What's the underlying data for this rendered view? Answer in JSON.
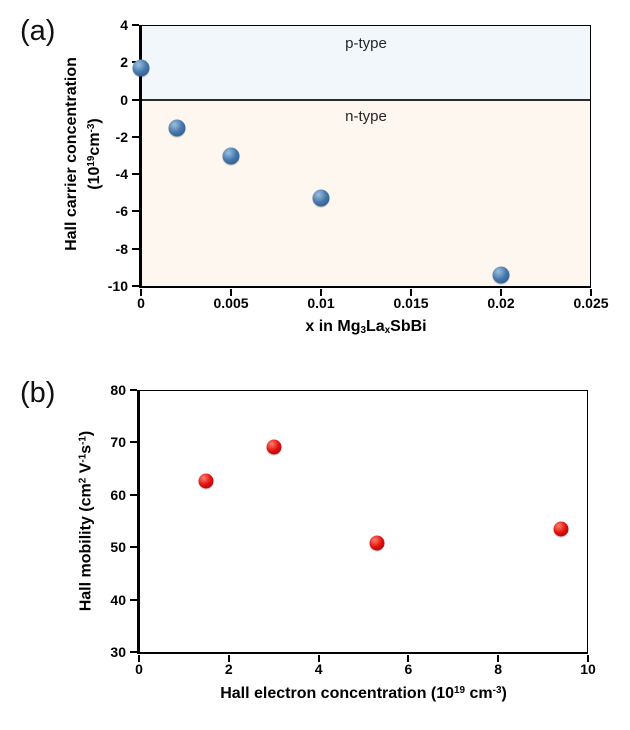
{
  "figure": {
    "panels": [
      {
        "tag": "(a)",
        "y_label_line1": "Hall carrier concentration",
        "y_label_line2": [
          {
            "t": "(10"
          },
          {
            "t": "19",
            "s": "sup"
          },
          {
            "t": "cm"
          },
          {
            "t": "-3",
            "s": "sup"
          },
          {
            "t": ")"
          }
        ],
        "x_label": [
          {
            "t": "x in Mg"
          },
          {
            "t": "3",
            "s": "sub"
          },
          {
            "t": "La"
          },
          {
            "t": "x",
            "s": "sub"
          },
          {
            "t": "SbBi"
          }
        ]
      },
      {
        "tag": "(b)",
        "y_label": [
          {
            "t": "Hall mobility (cm"
          },
          {
            "t": "2",
            "s": "sup"
          },
          {
            "t": " V"
          },
          {
            "t": "-1",
            "s": "sup"
          },
          {
            "t": "s"
          },
          {
            "t": "-1",
            "s": "sup"
          },
          {
            "t": ")"
          }
        ],
        "x_label": [
          {
            "t": "Hall electron concentration (10"
          },
          {
            "t": "19",
            "s": "sup"
          },
          {
            "t": " cm"
          },
          {
            "t": "-3",
            "s": "sup"
          },
          {
            "t": ")"
          }
        ]
      }
    ]
  },
  "chart_data": [
    {
      "type": "scatter",
      "title": "",
      "xlabel": "x in Mg3LaxSbBi",
      "ylabel": "Hall carrier concentration (10^19 cm^-3)",
      "xlim": [
        0,
        0.025
      ],
      "ylim": [
        -10,
        4
      ],
      "x_ticks": [
        0,
        0.005,
        0.01,
        0.015,
        0.02,
        0.025
      ],
      "x_tick_labels": [
        "0",
        "0.005",
        "0.01",
        "0.015",
        "0.02",
        "0.025"
      ],
      "y_ticks": [
        4,
        2,
        0,
        -2,
        -4,
        -6,
        -8,
        -10
      ],
      "grid": false,
      "legend": false,
      "points": [
        {
          "x": 0,
          "y": 1.7
        },
        {
          "x": 0.002,
          "y": -1.5
        },
        {
          "x": 0.005,
          "y": -3.0
        },
        {
          "x": 0.01,
          "y": -5.3
        },
        {
          "x": 0.02,
          "y": -9.4
        }
      ],
      "marker": {
        "shape": "sphere",
        "size": 17,
        "fill": "#4678ac",
        "highlight": "#9cc0de",
        "shadow": "#25507d"
      },
      "regions": {
        "p": {
          "label": "p-type",
          "color": "#f2f7fb",
          "range": [
            0,
            4
          ]
        },
        "n": {
          "label": "n-type",
          "color": "#fdf7f0",
          "range": [
            -10,
            0
          ]
        }
      },
      "zero_line": 0
    },
    {
      "type": "scatter",
      "title": "",
      "xlabel": "Hall electron concentration (10^19 cm^-3)",
      "ylabel": "Hall mobility (cm^2 V^-1 s^-1)",
      "xlim": [
        0,
        10
      ],
      "ylim": [
        30,
        80
      ],
      "x_ticks": [
        0,
        2,
        4,
        6,
        8,
        10
      ],
      "y_ticks": [
        30,
        40,
        50,
        60,
        70,
        80
      ],
      "grid": false,
      "legend": false,
      "points": [
        {
          "x": 1.5,
          "y": 62.7
        },
        {
          "x": 3.0,
          "y": 69.2
        },
        {
          "x": 5.3,
          "y": 50.8
        },
        {
          "x": 9.4,
          "y": 53.4
        }
      ],
      "marker": {
        "shape": "sphere",
        "size": 15,
        "fill": "#e21210",
        "highlight": "#ff7f6b",
        "shadow": "#8c0303"
      }
    }
  ]
}
